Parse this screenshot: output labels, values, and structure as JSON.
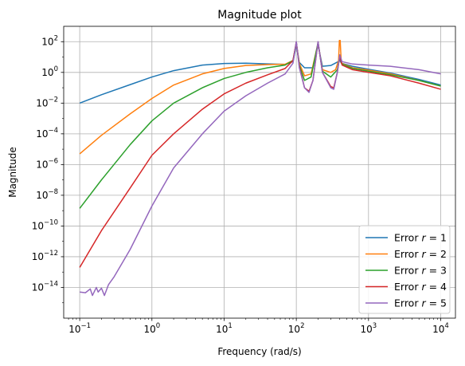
{
  "chart_data": {
    "type": "line",
    "title": "Magnitude plot",
    "xlabel": "Frequency (rad/s)",
    "ylabel": "Magnitude",
    "xscale": "log",
    "yscale": "log",
    "xlim": [
      0.06,
      16000
    ],
    "ylim": [
      1e-16,
      1000.0
    ],
    "grid": true,
    "legend_position": "bottom-right",
    "x_ticks": [
      {
        "value": 0.1,
        "base": "10",
        "exp": "−1"
      },
      {
        "value": 1,
        "base": "10",
        "exp": "0"
      },
      {
        "value": 10,
        "base": "10",
        "exp": "1"
      },
      {
        "value": 100,
        "base": "10",
        "exp": "2"
      },
      {
        "value": 1000,
        "base": "10",
        "exp": "3"
      },
      {
        "value": 10000,
        "base": "10",
        "exp": "4"
      }
    ],
    "y_ticks": [
      {
        "value": 1e-14,
        "base": "10",
        "exp": "−14"
      },
      {
        "value": 1e-12,
        "base": "10",
        "exp": "−12"
      },
      {
        "value": 1e-10,
        "base": "10",
        "exp": "−10"
      },
      {
        "value": 1e-08,
        "base": "10",
        "exp": "−8"
      },
      {
        "value": 1e-06,
        "base": "10",
        "exp": "−6"
      },
      {
        "value": 0.0001,
        "base": "10",
        "exp": "−4"
      },
      {
        "value": 0.01,
        "base": "10",
        "exp": "−2"
      },
      {
        "value": 1,
        "base": "10",
        "exp": "0"
      },
      {
        "value": 100,
        "base": "10",
        "exp": "2"
      }
    ],
    "series": [
      {
        "name": "Error r = 1",
        "label_prefix": "Error ",
        "label_var": "r",
        "label_suffix": " = 1",
        "color": "#1f77b4",
        "points": [
          [
            0.1,
            0.01
          ],
          [
            0.2,
            0.035
          ],
          [
            0.5,
            0.16
          ],
          [
            1,
            0.5
          ],
          [
            2,
            1.3
          ],
          [
            5,
            3
          ],
          [
            10,
            3.8
          ],
          [
            20,
            4
          ],
          [
            40,
            3.6
          ],
          [
            70,
            3.3
          ],
          [
            90,
            5
          ],
          [
            100,
            60
          ],
          [
            110,
            4.5
          ],
          [
            130,
            2
          ],
          [
            170,
            2
          ],
          [
            200,
            60
          ],
          [
            230,
            2.5
          ],
          [
            300,
            2.8
          ],
          [
            380,
            5
          ],
          [
            400,
            6
          ],
          [
            420,
            4
          ],
          [
            600,
            2.5
          ],
          [
            1000,
            1.6
          ],
          [
            2000,
            0.9
          ],
          [
            5000,
            0.35
          ],
          [
            10000,
            0.15
          ]
        ]
      },
      {
        "name": "Error r = 2",
        "label_prefix": "Error ",
        "label_var": "r",
        "label_suffix": " = 2",
        "color": "#ff7f0e",
        "points": [
          [
            0.1,
            5e-06
          ],
          [
            0.2,
            8e-05
          ],
          [
            0.5,
            0.002
          ],
          [
            1,
            0.02
          ],
          [
            2,
            0.15
          ],
          [
            5,
            0.8
          ],
          [
            10,
            1.8
          ],
          [
            20,
            2.8
          ],
          [
            40,
            3.2
          ],
          [
            70,
            3.4
          ],
          [
            90,
            6
          ],
          [
            100,
            80
          ],
          [
            110,
            4
          ],
          [
            130,
            0.6
          ],
          [
            160,
            0.8
          ],
          [
            200,
            80
          ],
          [
            230,
            1.5
          ],
          [
            300,
            1
          ],
          [
            350,
            1.5
          ],
          [
            385,
            6
          ],
          [
            395,
            120
          ],
          [
            405,
            120
          ],
          [
            420,
            4
          ],
          [
            600,
            2
          ],
          [
            1000,
            1.4
          ],
          [
            2000,
            0.8
          ],
          [
            5000,
            0.3
          ],
          [
            10000,
            0.13
          ]
        ]
      },
      {
        "name": "Error r = 3",
        "label_prefix": "Error ",
        "label_var": "r",
        "label_suffix": " = 3",
        "color": "#2ca02c",
        "points": [
          [
            0.1,
            1.4e-09
          ],
          [
            0.2,
            1e-07
          ],
          [
            0.5,
            2e-05
          ],
          [
            1,
            0.0007
          ],
          [
            2,
            0.01
          ],
          [
            5,
            0.1
          ],
          [
            10,
            0.4
          ],
          [
            20,
            1
          ],
          [
            40,
            2
          ],
          [
            70,
            3
          ],
          [
            90,
            6
          ],
          [
            100,
            90
          ],
          [
            110,
            3
          ],
          [
            130,
            0.3
          ],
          [
            160,
            0.5
          ],
          [
            200,
            90
          ],
          [
            230,
            1.2
          ],
          [
            300,
            0.5
          ],
          [
            370,
            1.5
          ],
          [
            400,
            10
          ],
          [
            430,
            3.5
          ],
          [
            600,
            1.8
          ],
          [
            1000,
            1.2
          ],
          [
            2000,
            0.7
          ],
          [
            5000,
            0.3
          ],
          [
            10000,
            0.13
          ]
        ]
      },
      {
        "name": "Error r = 4",
        "label_prefix": "Error ",
        "label_var": "r",
        "label_suffix": " = 4",
        "color": "#d62728",
        "points": [
          [
            0.1,
            2e-13
          ],
          [
            0.2,
            5e-11
          ],
          [
            0.5,
            3e-08
          ],
          [
            1,
            4e-06
          ],
          [
            2,
            0.0001
          ],
          [
            5,
            0.004
          ],
          [
            10,
            0.04
          ],
          [
            20,
            0.2
          ],
          [
            40,
            0.7
          ],
          [
            70,
            1.8
          ],
          [
            90,
            6
          ],
          [
            100,
            95
          ],
          [
            110,
            2.5
          ],
          [
            130,
            0.1
          ],
          [
            150,
            0.06
          ],
          [
            170,
            0.3
          ],
          [
            200,
            95
          ],
          [
            230,
            1
          ],
          [
            300,
            0.12
          ],
          [
            330,
            0.1
          ],
          [
            370,
            1
          ],
          [
            400,
            12
          ],
          [
            430,
            3
          ],
          [
            600,
            1.5
          ],
          [
            1000,
            1
          ],
          [
            2000,
            0.6
          ],
          [
            5000,
            0.2
          ],
          [
            10000,
            0.08
          ]
        ]
      },
      {
        "name": "Error r = 5",
        "label_prefix": "Error ",
        "label_var": "r",
        "label_suffix": " = 5",
        "color": "#9467bd",
        "points": [
          [
            0.1,
            5e-15
          ],
          [
            0.12,
            4.5e-15
          ],
          [
            0.14,
            8e-15
          ],
          [
            0.15,
            3e-15
          ],
          [
            0.17,
            1e-14
          ],
          [
            0.18,
            5e-15
          ],
          [
            0.2,
            9e-15
          ],
          [
            0.22,
            3e-15
          ],
          [
            0.25,
            1.5e-14
          ],
          [
            0.3,
            5e-14
          ],
          [
            0.4,
            5e-13
          ],
          [
            0.5,
            3e-12
          ],
          [
            1,
            2e-09
          ],
          [
            2,
            6e-07
          ],
          [
            5,
            0.0001
          ],
          [
            10,
            0.003
          ],
          [
            20,
            0.03
          ],
          [
            40,
            0.2
          ],
          [
            70,
            0.8
          ],
          [
            90,
            4
          ],
          [
            100,
            100
          ],
          [
            110,
            2
          ],
          [
            130,
            0.1
          ],
          [
            150,
            0.05
          ],
          [
            170,
            0.3
          ],
          [
            200,
            100
          ],
          [
            230,
            1
          ],
          [
            300,
            0.1
          ],
          [
            330,
            0.08
          ],
          [
            370,
            1
          ],
          [
            400,
            14
          ],
          [
            430,
            5
          ],
          [
            600,
            3.5
          ],
          [
            1000,
            3
          ],
          [
            2000,
            2.5
          ],
          [
            5000,
            1.5
          ],
          [
            10000,
            0.8
          ]
        ]
      }
    ]
  }
}
